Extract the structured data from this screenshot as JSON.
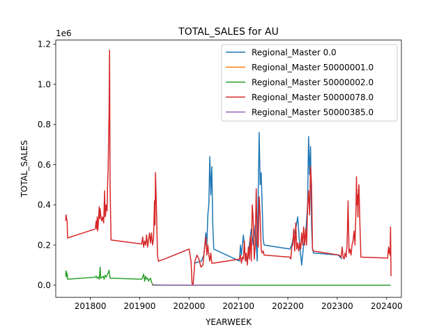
{
  "chart_data": {
    "type": "line",
    "title": "TOTAL_SALES for AU",
    "xlabel": "YEARWEEK",
    "ylabel": "TOTAL_SALES",
    "y_offset_label": "1e6",
    "xlim": [
      201730,
      202430
    ],
    "ylim": [
      -0.06,
      1.22
    ],
    "x_ticks": [
      201800,
      201900,
      202000,
      202100,
      202200,
      202300,
      202400
    ],
    "y_ticks": [
      0.0,
      0.2,
      0.4,
      0.6,
      0.8,
      1.0,
      1.2
    ],
    "grid": false,
    "legend_position": "upper right",
    "series": [
      {
        "name": "Regional_Master 0.0",
        "color": "#1f77b4",
        "points": [
          [
            202010,
            0.11
          ],
          [
            202025,
            0.12
          ],
          [
            202030,
            0.15
          ],
          [
            202034,
            0.26
          ],
          [
            202036,
            0.2
          ],
          [
            202038,
            0.35
          ],
          [
            202040,
            0.4
          ],
          [
            202042,
            0.64
          ],
          [
            202044,
            0.45
          ],
          [
            202046,
            0.59
          ],
          [
            202048,
            0.3
          ],
          [
            202050,
            0.18
          ],
          [
            202102,
            0.12
          ],
          [
            202104,
            0.2
          ],
          [
            202106,
            0.15
          ],
          [
            202110,
            0.25
          ],
          [
            202114,
            0.13
          ],
          [
            202118,
            0.12
          ],
          [
            202122,
            0.2
          ],
          [
            202126,
            0.28
          ],
          [
            202130,
            0.2
          ],
          [
            202134,
            0.3
          ],
          [
            202138,
            0.12
          ],
          [
            202140,
            0.45
          ],
          [
            202142,
            0.76
          ],
          [
            202144,
            0.5
          ],
          [
            202146,
            0.56
          ],
          [
            202148,
            0.4
          ],
          [
            202150,
            0.23
          ],
          [
            202152,
            0.2
          ],
          [
            202204,
            0.18
          ],
          [
            202208,
            0.2
          ],
          [
            202212,
            0.25
          ],
          [
            202216,
            0.28
          ],
          [
            202220,
            0.34
          ],
          [
            202224,
            0.2
          ],
          [
            202228,
            0.1
          ],
          [
            202232,
            0.2
          ],
          [
            202236,
            0.25
          ],
          [
            202240,
            0.4
          ],
          [
            202242,
            0.74
          ],
          [
            202244,
            0.55
          ],
          [
            202246,
            0.69
          ],
          [
            202248,
            0.3
          ],
          [
            202250,
            0.18
          ],
          [
            202252,
            0.16
          ],
          [
            202302,
            0.15
          ],
          [
            202310,
            0.13
          ]
        ]
      },
      {
        "name": "Regional_Master 50000001.0",
        "color": "#ff7f0e",
        "points": [
          [
            201925,
            0.0
          ],
          [
            202000,
            0.0
          ],
          [
            202100,
            0.0
          ]
        ]
      },
      {
        "name": "Regional_Master 50000002.0",
        "color": "#2ca02c",
        "points": [
          [
            201750,
            0.045
          ],
          [
            201751,
            0.072
          ],
          [
            201752,
            0.04
          ],
          [
            201753,
            0.06
          ],
          [
            201754,
            0.03
          ],
          [
            201810,
            0.04
          ],
          [
            201812,
            0.045
          ],
          [
            201814,
            0.035
          ],
          [
            201816,
            0.04
          ],
          [
            201818,
            0.03
          ],
          [
            201820,
            0.09
          ],
          [
            201821,
            0.035
          ],
          [
            201824,
            0.04
          ],
          [
            201826,
            0.045
          ],
          [
            201828,
            0.03
          ],
          [
            201830,
            0.05
          ],
          [
            201832,
            0.04
          ],
          [
            201834,
            0.05
          ],
          [
            201836,
            0.06
          ],
          [
            201838,
            0.075
          ],
          [
            201840,
            0.035
          ],
          [
            201904,
            0.03
          ],
          [
            201906,
            0.04
          ],
          [
            201908,
            0.055
          ],
          [
            201910,
            0.02
          ],
          [
            201912,
            0.045
          ],
          [
            201914,
            0.03
          ],
          [
            201916,
            0.035
          ],
          [
            201918,
            0.02
          ],
          [
            201920,
            0.03
          ],
          [
            201922,
            0.035
          ],
          [
            201924,
            0.015
          ],
          [
            201926,
            0.005
          ],
          [
            201928,
            0.0
          ],
          [
            202000,
            0.0
          ],
          [
            202100,
            0.0
          ],
          [
            202200,
            0.0
          ],
          [
            202300,
            0.0
          ],
          [
            202408,
            0.0
          ]
        ]
      },
      {
        "name": "Regional_Master 50000078.0",
        "color": "#d62728",
        "points": [
          [
            201750,
            0.32
          ],
          [
            201751,
            0.35
          ],
          [
            201752,
            0.33
          ],
          [
            201753,
            0.32
          ],
          [
            201754,
            0.235
          ],
          [
            201810,
            0.28
          ],
          [
            201811,
            0.3
          ],
          [
            201812,
            0.32
          ],
          [
            201813,
            0.28
          ],
          [
            201814,
            0.34
          ],
          [
            201815,
            0.27
          ],
          [
            201816,
            0.3
          ],
          [
            201818,
            0.39
          ],
          [
            201819,
            0.33
          ],
          [
            201820,
            0.38
          ],
          [
            201821,
            0.35
          ],
          [
            201823,
            0.32
          ],
          [
            201825,
            0.34
          ],
          [
            201827,
            0.31
          ],
          [
            201829,
            0.47
          ],
          [
            201830,
            0.34
          ],
          [
            201831,
            0.35
          ],
          [
            201832,
            0.4
          ],
          [
            201834,
            0.37
          ],
          [
            201835,
            0.5
          ],
          [
            201836,
            0.57
          ],
          [
            201838,
            0.86
          ],
          [
            201839,
            1.17
          ],
          [
            201840,
            0.5
          ],
          [
            201842,
            0.225
          ],
          [
            201904,
            0.205
          ],
          [
            201906,
            0.24
          ],
          [
            201908,
            0.19
          ],
          [
            201910,
            0.22
          ],
          [
            201912,
            0.2
          ],
          [
            201914,
            0.25
          ],
          [
            201916,
            0.19
          ],
          [
            201920,
            0.26
          ],
          [
            201922,
            0.21
          ],
          [
            201924,
            0.26
          ],
          [
            201926,
            0.2
          ],
          [
            201928,
            0.23
          ],
          [
            201930,
            0.42
          ],
          [
            201931,
            0.3
          ],
          [
            201932,
            0.56
          ],
          [
            201934,
            0.38
          ],
          [
            201936,
            0.15
          ],
          [
            201938,
            0.12
          ],
          [
            201950,
            0.13
          ],
          [
            202000,
            0.18
          ],
          [
            202002,
            0.15
          ],
          [
            202004,
            0.12
          ],
          [
            202006,
            0.01
          ],
          [
            202008,
            0.0
          ],
          [
            202012,
            0.12
          ],
          [
            202016,
            0.15
          ],
          [
            202020,
            0.13
          ],
          [
            202024,
            0.09
          ],
          [
            202028,
            0.1
          ],
          [
            202032,
            0.2
          ],
          [
            202034,
            0.24
          ],
          [
            202036,
            0.15
          ],
          [
            202038,
            0.2
          ],
          [
            202040,
            0.15
          ],
          [
            202042,
            0.12
          ],
          [
            202044,
            0.16
          ],
          [
            202046,
            0.11
          ],
          [
            202050,
            0.11
          ],
          [
            202102,
            0.13
          ],
          [
            202104,
            0.15
          ],
          [
            202106,
            0.11
          ],
          [
            202108,
            0.14
          ],
          [
            202110,
            0.13
          ],
          [
            202112,
            0.22
          ],
          [
            202114,
            0.12
          ],
          [
            202116,
            0.16
          ],
          [
            202118,
            0.1
          ],
          [
            202120,
            0.19
          ],
          [
            202122,
            0.13
          ],
          [
            202124,
            0.24
          ],
          [
            202126,
            0.12
          ],
          [
            202128,
            0.4
          ],
          [
            202130,
            0.32
          ],
          [
            202132,
            0.13
          ],
          [
            202134,
            0.2
          ],
          [
            202136,
            0.48
          ],
          [
            202138,
            0.21
          ],
          [
            202140,
            0.19
          ],
          [
            202142,
            0.44
          ],
          [
            202144,
            0.34
          ],
          [
            202146,
            0.18
          ],
          [
            202148,
            0.16
          ],
          [
            202150,
            0.17
          ],
          [
            202152,
            0.15
          ],
          [
            202204,
            0.14
          ],
          [
            202206,
            0.13
          ],
          [
            202208,
            0.19
          ],
          [
            202210,
            0.2
          ],
          [
            202212,
            0.28
          ],
          [
            202214,
            0.17
          ],
          [
            202216,
            0.31
          ],
          [
            202218,
            0.18
          ],
          [
            202220,
            0.21
          ],
          [
            202222,
            0.17
          ],
          [
            202224,
            0.21
          ],
          [
            202226,
            0.18
          ],
          [
            202228,
            0.26
          ],
          [
            202230,
            0.2
          ],
          [
            202232,
            0.29
          ],
          [
            202234,
            0.2
          ],
          [
            202236,
            0.28
          ],
          [
            202238,
            0.2
          ],
          [
            202240,
            0.39
          ],
          [
            202242,
            0.47
          ],
          [
            202244,
            0.35
          ],
          [
            202246,
            0.59
          ],
          [
            202248,
            0.5
          ],
          [
            202250,
            0.18
          ],
          [
            202252,
            0.17
          ],
          [
            202304,
            0.15
          ],
          [
            202308,
            0.14
          ],
          [
            202310,
            0.19
          ],
          [
            202312,
            0.14
          ],
          [
            202314,
            0.13
          ],
          [
            202316,
            0.16
          ],
          [
            202318,
            0.14
          ],
          [
            202320,
            0.2
          ],
          [
            202322,
            0.42
          ],
          [
            202324,
            0.16
          ],
          [
            202326,
            0.18
          ],
          [
            202328,
            0.15
          ],
          [
            202330,
            0.2
          ],
          [
            202332,
            0.22
          ],
          [
            202334,
            0.27
          ],
          [
            202336,
            0.2
          ],
          [
            202338,
            0.37
          ],
          [
            202339,
            0.54
          ],
          [
            202340,
            0.4
          ],
          [
            202341,
            0.45
          ],
          [
            202342,
            0.34
          ],
          [
            202343,
            0.47
          ],
          [
            202344,
            0.5
          ],
          [
            202346,
            0.3
          ],
          [
            202348,
            0.14
          ],
          [
            202402,
            0.135
          ],
          [
            202404,
            0.19
          ],
          [
            202405,
            0.16
          ],
          [
            202406,
            0.18
          ],
          [
            202407,
            0.15
          ],
          [
            202408,
            0.29
          ],
          [
            202409,
            0.045
          ]
        ]
      },
      {
        "name": "Regional_Master 50000385.0",
        "color": "#9467bd",
        "points": [
          [
            201925,
            0.002
          ],
          [
            201950,
            0.001
          ],
          [
            202000,
            0.001
          ],
          [
            202050,
            0.001
          ],
          [
            202104,
            0.001
          ]
        ]
      }
    ]
  }
}
